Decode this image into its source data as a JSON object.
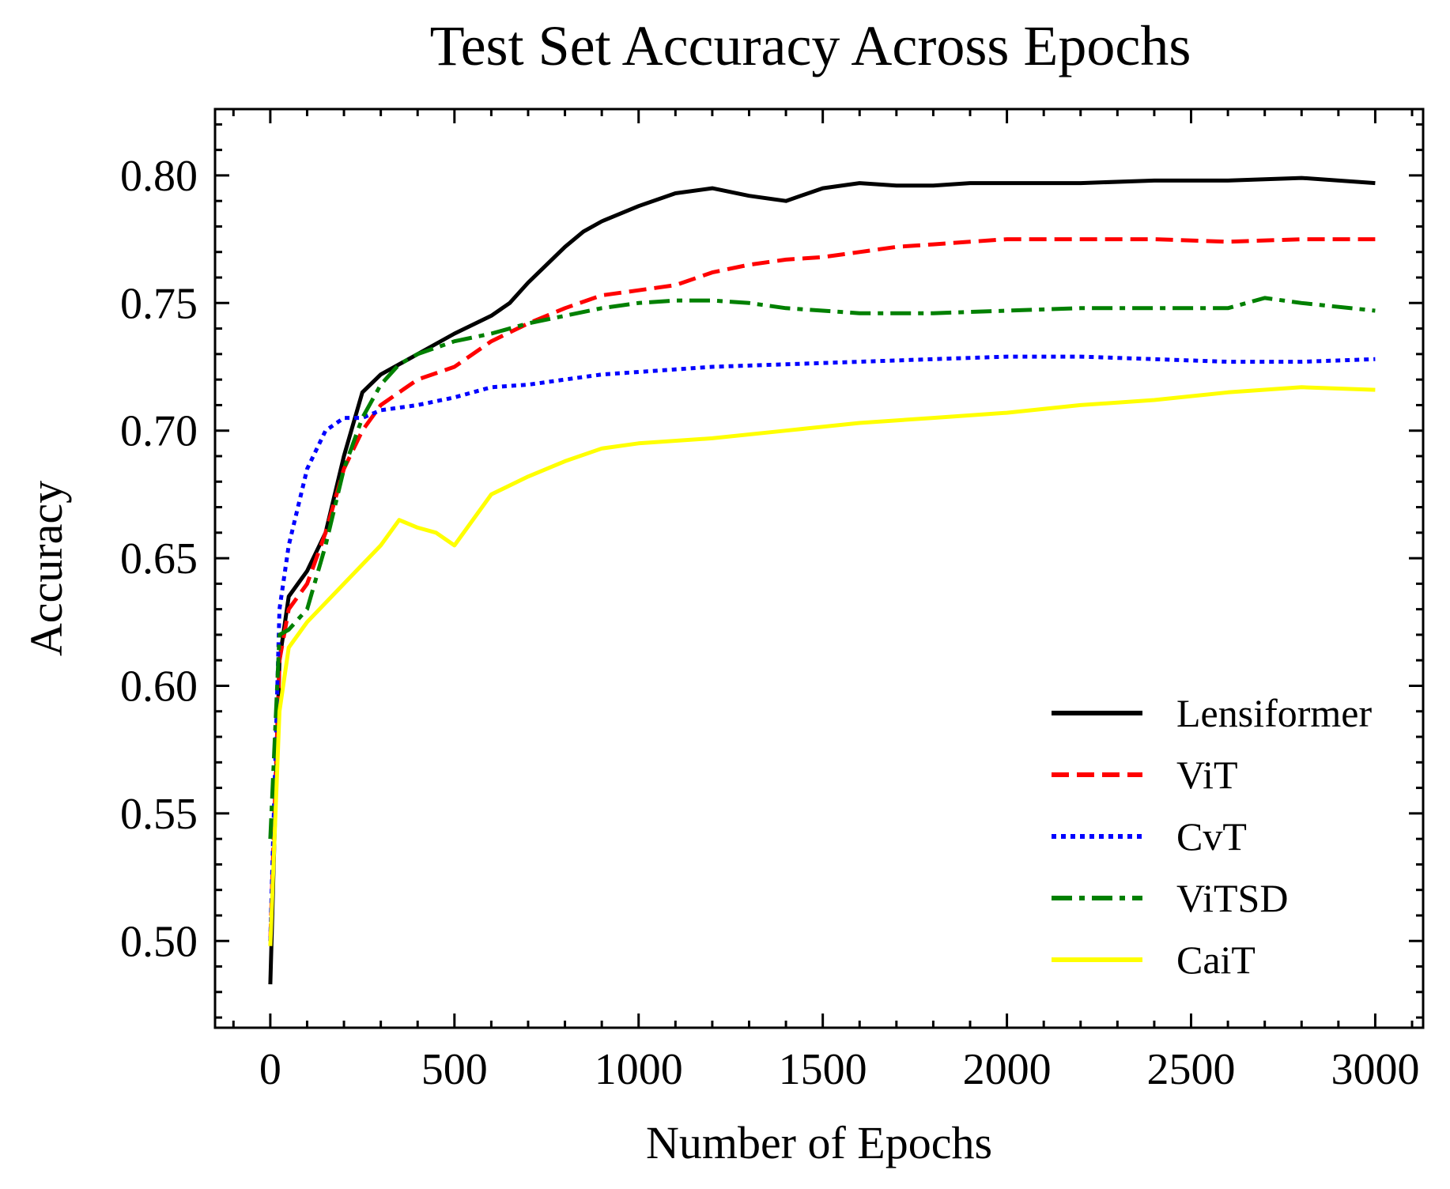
{
  "chart_data": {
    "type": "line",
    "title": "Test Set Accuracy Across Epochs",
    "xlabel": "Number of Epochs",
    "ylabel": "Accuracy",
    "xlim": [
      -150,
      3130
    ],
    "ylim": [
      0.466,
      0.826
    ],
    "xticks": [
      0,
      500,
      1000,
      1500,
      2000,
      2500,
      3000
    ],
    "xtick_labels": [
      "0",
      "500",
      "1000",
      "1500",
      "2000",
      "2500",
      "3000"
    ],
    "yticks": [
      0.5,
      0.55,
      0.6,
      0.65,
      0.7,
      0.75,
      0.8
    ],
    "ytick_labels": [
      "0.50",
      "0.55",
      "0.60",
      "0.65",
      "0.70",
      "0.75",
      "0.80"
    ],
    "grid": false,
    "legend_position": "lower-right",
    "series": [
      {
        "name": "Lensiformer",
        "color": "#000000",
        "style": "solid",
        "x": [
          0,
          25,
          50,
          100,
          150,
          200,
          250,
          300,
          400,
          500,
          600,
          650,
          700,
          750,
          800,
          850,
          900,
          1000,
          1100,
          1200,
          1300,
          1400,
          1500,
          1600,
          1700,
          1800,
          1900,
          2000,
          2200,
          2400,
          2600,
          2800,
          3000
        ],
        "y": [
          0.483,
          0.61,
          0.635,
          0.645,
          0.66,
          0.69,
          0.715,
          0.722,
          0.73,
          0.738,
          0.745,
          0.75,
          0.758,
          0.765,
          0.772,
          0.778,
          0.782,
          0.788,
          0.793,
          0.795,
          0.792,
          0.79,
          0.795,
          0.797,
          0.796,
          0.796,
          0.797,
          0.797,
          0.797,
          0.798,
          0.798,
          0.799,
          0.797
        ]
      },
      {
        "name": "ViT",
        "color": "#ff0000",
        "style": "dashed",
        "x": [
          0,
          25,
          50,
          100,
          150,
          200,
          250,
          300,
          400,
          500,
          600,
          700,
          800,
          900,
          1000,
          1100,
          1200,
          1300,
          1400,
          1500,
          1600,
          1700,
          1800,
          1900,
          2000,
          2200,
          2400,
          2600,
          2800,
          3000
        ],
        "y": [
          0.5,
          0.61,
          0.63,
          0.64,
          0.66,
          0.685,
          0.7,
          0.71,
          0.72,
          0.725,
          0.735,
          0.742,
          0.748,
          0.753,
          0.755,
          0.757,
          0.762,
          0.765,
          0.767,
          0.768,
          0.77,
          0.772,
          0.773,
          0.774,
          0.775,
          0.775,
          0.775,
          0.774,
          0.775,
          0.775
        ]
      },
      {
        "name": "CvT",
        "color": "#0000ff",
        "style": "dotted",
        "x": [
          0,
          25,
          50,
          100,
          150,
          200,
          250,
          300,
          400,
          500,
          600,
          700,
          800,
          900,
          1000,
          1200,
          1400,
          1600,
          1800,
          2000,
          2200,
          2400,
          2600,
          2800,
          3000
        ],
        "y": [
          0.5,
          0.63,
          0.655,
          0.685,
          0.7,
          0.705,
          0.705,
          0.708,
          0.71,
          0.713,
          0.717,
          0.718,
          0.72,
          0.722,
          0.723,
          0.725,
          0.726,
          0.727,
          0.728,
          0.729,
          0.729,
          0.728,
          0.727,
          0.727,
          0.728
        ]
      },
      {
        "name": "ViTSD",
        "color": "#008000",
        "style": "dashdot",
        "x": [
          0,
          25,
          50,
          100,
          150,
          200,
          250,
          300,
          350,
          400,
          500,
          600,
          700,
          800,
          900,
          1000,
          1100,
          1200,
          1300,
          1400,
          1600,
          1800,
          2000,
          2200,
          2400,
          2600,
          2700,
          2800,
          3000
        ],
        "y": [
          0.54,
          0.62,
          0.622,
          0.63,
          0.655,
          0.685,
          0.705,
          0.718,
          0.726,
          0.73,
          0.735,
          0.738,
          0.742,
          0.745,
          0.748,
          0.75,
          0.751,
          0.751,
          0.75,
          0.748,
          0.746,
          0.746,
          0.747,
          0.748,
          0.748,
          0.748,
          0.752,
          0.75,
          0.747
        ]
      },
      {
        "name": "CaiT",
        "color": "#ffff00",
        "style": "solid",
        "x": [
          0,
          25,
          50,
          100,
          200,
          300,
          350,
          400,
          450,
          500,
          600,
          700,
          800,
          900,
          1000,
          1200,
          1400,
          1600,
          1800,
          2000,
          2200,
          2400,
          2600,
          2800,
          3000
        ],
        "y": [
          0.498,
          0.59,
          0.615,
          0.625,
          0.64,
          0.655,
          0.665,
          0.662,
          0.66,
          0.655,
          0.675,
          0.682,
          0.688,
          0.693,
          0.695,
          0.697,
          0.7,
          0.703,
          0.705,
          0.707,
          0.71,
          0.712,
          0.715,
          0.717,
          0.716
        ]
      }
    ]
  }
}
